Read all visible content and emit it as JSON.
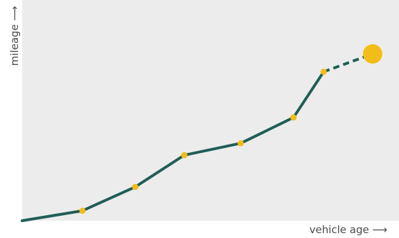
{
  "chart_data": {
    "type": "line",
    "xlabel": "vehicle age ⟶",
    "ylabel": "mileage ⟶",
    "grid": false,
    "colors": {
      "background": "#ececec",
      "line": "#1f5e57",
      "marker": "#f2bd16",
      "label": "#4a4a4a"
    },
    "xlim": [
      0,
      100
    ],
    "ylim": [
      0,
      100
    ],
    "points": [
      {
        "x": 0,
        "y": 0
      },
      {
        "x": 16,
        "y": 5
      },
      {
        "x": 30,
        "y": 17
      },
      {
        "x": 43,
        "y": 33
      },
      {
        "x": 58,
        "y": 39
      },
      {
        "x": 72,
        "y": 52
      },
      {
        "x": 80,
        "y": 75
      }
    ],
    "projection": {
      "x": 93,
      "y": 84
    }
  }
}
